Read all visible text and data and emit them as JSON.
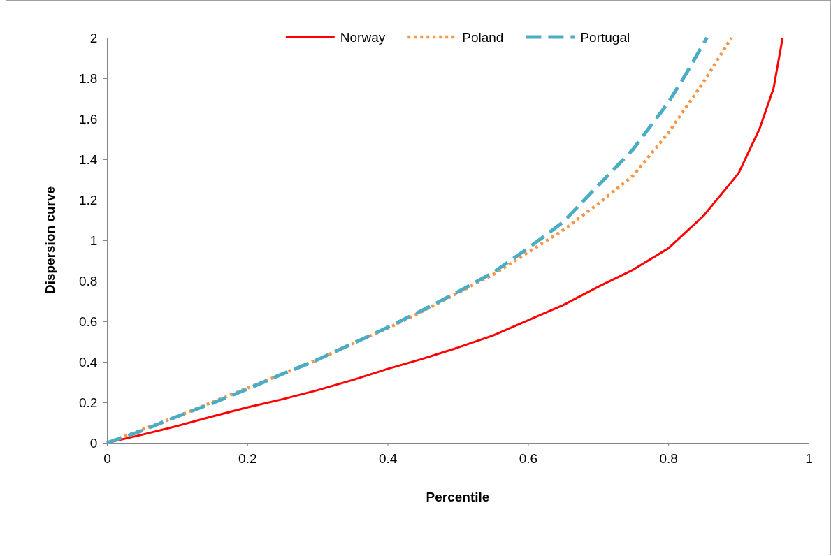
{
  "chart_data": {
    "type": "line",
    "xlabel": "Percentile",
    "ylabel": "Dispersion curve",
    "xlim": [
      0,
      1
    ],
    "ylim": [
      0,
      2
    ],
    "xticks": [
      0,
      0.2,
      0.4,
      0.6,
      0.8,
      1
    ],
    "yticks": [
      0,
      0.2,
      0.4,
      0.6,
      0.8,
      1,
      1.2,
      1.4,
      1.6,
      1.8,
      2
    ],
    "grid": false,
    "legend": "top",
    "marker": "none",
    "series": [
      {
        "name": "Norway",
        "color": "#ff0000",
        "line_style": "solid",
        "x": [
          0,
          0.05,
          0.1,
          0.15,
          0.2,
          0.25,
          0.3,
          0.35,
          0.4,
          0.45,
          0.5,
          0.55,
          0.6,
          0.65,
          0.7,
          0.75,
          0.8,
          0.85,
          0.9,
          0.93,
          0.95,
          0.963
        ],
        "values": [
          0,
          0.04,
          0.083,
          0.13,
          0.175,
          0.215,
          0.26,
          0.31,
          0.365,
          0.415,
          0.47,
          0.53,
          0.605,
          0.68,
          0.77,
          0.855,
          0.96,
          1.12,
          1.33,
          1.55,
          1.75,
          2.0
        ]
      },
      {
        "name": "Poland",
        "color": "#f79646",
        "line_style": "dotted",
        "x": [
          0,
          0.05,
          0.1,
          0.15,
          0.2,
          0.25,
          0.3,
          0.35,
          0.4,
          0.45,
          0.5,
          0.55,
          0.6,
          0.65,
          0.7,
          0.75,
          0.8,
          0.85,
          0.89
        ],
        "values": [
          0,
          0.065,
          0.13,
          0.2,
          0.27,
          0.34,
          0.41,
          0.49,
          0.565,
          0.65,
          0.74,
          0.83,
          0.94,
          1.05,
          1.18,
          1.32,
          1.53,
          1.78,
          2.0
        ]
      },
      {
        "name": "Portugal",
        "color": "#4bacc6",
        "line_style": "dashed",
        "x": [
          0,
          0.05,
          0.1,
          0.15,
          0.2,
          0.25,
          0.3,
          0.35,
          0.4,
          0.45,
          0.5,
          0.55,
          0.6,
          0.65,
          0.7,
          0.75,
          0.8,
          0.825,
          0.855
        ],
        "values": [
          0,
          0.06,
          0.13,
          0.195,
          0.265,
          0.34,
          0.41,
          0.49,
          0.57,
          0.655,
          0.745,
          0.84,
          0.96,
          1.09,
          1.27,
          1.45,
          1.68,
          1.82,
          2.0
        ]
      }
    ]
  }
}
